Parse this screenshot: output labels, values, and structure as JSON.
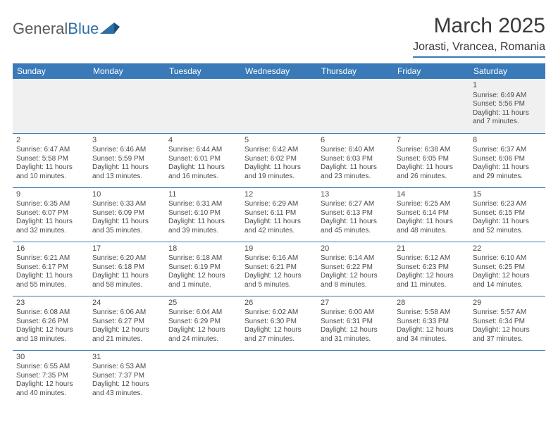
{
  "logo": {
    "part1": "General",
    "part2": "Blue"
  },
  "title": "March 2025",
  "location": "Jorasti, Vrancea, Romania",
  "colors": {
    "header_bg": "#3a7ab8",
    "header_text": "#ffffff",
    "border": "#3a7ab8",
    "text": "#4a4a4a",
    "empty_bg": "#f0f0f0"
  },
  "weekdays": [
    "Sunday",
    "Monday",
    "Tuesday",
    "Wednesday",
    "Thursday",
    "Friday",
    "Saturday"
  ],
  "weeks": [
    [
      {
        "day": "",
        "sunrise": "",
        "sunset": "",
        "daylight": ""
      },
      {
        "day": "",
        "sunrise": "",
        "sunset": "",
        "daylight": ""
      },
      {
        "day": "",
        "sunrise": "",
        "sunset": "",
        "daylight": ""
      },
      {
        "day": "",
        "sunrise": "",
        "sunset": "",
        "daylight": ""
      },
      {
        "day": "",
        "sunrise": "",
        "sunset": "",
        "daylight": ""
      },
      {
        "day": "",
        "sunrise": "",
        "sunset": "",
        "daylight": ""
      },
      {
        "day": "1",
        "sunrise": "Sunrise: 6:49 AM",
        "sunset": "Sunset: 5:56 PM",
        "daylight": "Daylight: 11 hours and 7 minutes."
      }
    ],
    [
      {
        "day": "2",
        "sunrise": "Sunrise: 6:47 AM",
        "sunset": "Sunset: 5:58 PM",
        "daylight": "Daylight: 11 hours and 10 minutes."
      },
      {
        "day": "3",
        "sunrise": "Sunrise: 6:46 AM",
        "sunset": "Sunset: 5:59 PM",
        "daylight": "Daylight: 11 hours and 13 minutes."
      },
      {
        "day": "4",
        "sunrise": "Sunrise: 6:44 AM",
        "sunset": "Sunset: 6:01 PM",
        "daylight": "Daylight: 11 hours and 16 minutes."
      },
      {
        "day": "5",
        "sunrise": "Sunrise: 6:42 AM",
        "sunset": "Sunset: 6:02 PM",
        "daylight": "Daylight: 11 hours and 19 minutes."
      },
      {
        "day": "6",
        "sunrise": "Sunrise: 6:40 AM",
        "sunset": "Sunset: 6:03 PM",
        "daylight": "Daylight: 11 hours and 23 minutes."
      },
      {
        "day": "7",
        "sunrise": "Sunrise: 6:38 AM",
        "sunset": "Sunset: 6:05 PM",
        "daylight": "Daylight: 11 hours and 26 minutes."
      },
      {
        "day": "8",
        "sunrise": "Sunrise: 6:37 AM",
        "sunset": "Sunset: 6:06 PM",
        "daylight": "Daylight: 11 hours and 29 minutes."
      }
    ],
    [
      {
        "day": "9",
        "sunrise": "Sunrise: 6:35 AM",
        "sunset": "Sunset: 6:07 PM",
        "daylight": "Daylight: 11 hours and 32 minutes."
      },
      {
        "day": "10",
        "sunrise": "Sunrise: 6:33 AM",
        "sunset": "Sunset: 6:09 PM",
        "daylight": "Daylight: 11 hours and 35 minutes."
      },
      {
        "day": "11",
        "sunrise": "Sunrise: 6:31 AM",
        "sunset": "Sunset: 6:10 PM",
        "daylight": "Daylight: 11 hours and 39 minutes."
      },
      {
        "day": "12",
        "sunrise": "Sunrise: 6:29 AM",
        "sunset": "Sunset: 6:11 PM",
        "daylight": "Daylight: 11 hours and 42 minutes."
      },
      {
        "day": "13",
        "sunrise": "Sunrise: 6:27 AM",
        "sunset": "Sunset: 6:13 PM",
        "daylight": "Daylight: 11 hours and 45 minutes."
      },
      {
        "day": "14",
        "sunrise": "Sunrise: 6:25 AM",
        "sunset": "Sunset: 6:14 PM",
        "daylight": "Daylight: 11 hours and 48 minutes."
      },
      {
        "day": "15",
        "sunrise": "Sunrise: 6:23 AM",
        "sunset": "Sunset: 6:15 PM",
        "daylight": "Daylight: 11 hours and 52 minutes."
      }
    ],
    [
      {
        "day": "16",
        "sunrise": "Sunrise: 6:21 AM",
        "sunset": "Sunset: 6:17 PM",
        "daylight": "Daylight: 11 hours and 55 minutes."
      },
      {
        "day": "17",
        "sunrise": "Sunrise: 6:20 AM",
        "sunset": "Sunset: 6:18 PM",
        "daylight": "Daylight: 11 hours and 58 minutes."
      },
      {
        "day": "18",
        "sunrise": "Sunrise: 6:18 AM",
        "sunset": "Sunset: 6:19 PM",
        "daylight": "Daylight: 12 hours and 1 minute."
      },
      {
        "day": "19",
        "sunrise": "Sunrise: 6:16 AM",
        "sunset": "Sunset: 6:21 PM",
        "daylight": "Daylight: 12 hours and 5 minutes."
      },
      {
        "day": "20",
        "sunrise": "Sunrise: 6:14 AM",
        "sunset": "Sunset: 6:22 PM",
        "daylight": "Daylight: 12 hours and 8 minutes."
      },
      {
        "day": "21",
        "sunrise": "Sunrise: 6:12 AM",
        "sunset": "Sunset: 6:23 PM",
        "daylight": "Daylight: 12 hours and 11 minutes."
      },
      {
        "day": "22",
        "sunrise": "Sunrise: 6:10 AM",
        "sunset": "Sunset: 6:25 PM",
        "daylight": "Daylight: 12 hours and 14 minutes."
      }
    ],
    [
      {
        "day": "23",
        "sunrise": "Sunrise: 6:08 AM",
        "sunset": "Sunset: 6:26 PM",
        "daylight": "Daylight: 12 hours and 18 minutes."
      },
      {
        "day": "24",
        "sunrise": "Sunrise: 6:06 AM",
        "sunset": "Sunset: 6:27 PM",
        "daylight": "Daylight: 12 hours and 21 minutes."
      },
      {
        "day": "25",
        "sunrise": "Sunrise: 6:04 AM",
        "sunset": "Sunset: 6:29 PM",
        "daylight": "Daylight: 12 hours and 24 minutes."
      },
      {
        "day": "26",
        "sunrise": "Sunrise: 6:02 AM",
        "sunset": "Sunset: 6:30 PM",
        "daylight": "Daylight: 12 hours and 27 minutes."
      },
      {
        "day": "27",
        "sunrise": "Sunrise: 6:00 AM",
        "sunset": "Sunset: 6:31 PM",
        "daylight": "Daylight: 12 hours and 31 minutes."
      },
      {
        "day": "28",
        "sunrise": "Sunrise: 5:58 AM",
        "sunset": "Sunset: 6:33 PM",
        "daylight": "Daylight: 12 hours and 34 minutes."
      },
      {
        "day": "29",
        "sunrise": "Sunrise: 5:57 AM",
        "sunset": "Sunset: 6:34 PM",
        "daylight": "Daylight: 12 hours and 37 minutes."
      }
    ],
    [
      {
        "day": "30",
        "sunrise": "Sunrise: 6:55 AM",
        "sunset": "Sunset: 7:35 PM",
        "daylight": "Daylight: 12 hours and 40 minutes."
      },
      {
        "day": "31",
        "sunrise": "Sunrise: 6:53 AM",
        "sunset": "Sunset: 7:37 PM",
        "daylight": "Daylight: 12 hours and 43 minutes."
      },
      {
        "day": "",
        "sunrise": "",
        "sunset": "",
        "daylight": ""
      },
      {
        "day": "",
        "sunrise": "",
        "sunset": "",
        "daylight": ""
      },
      {
        "day": "",
        "sunrise": "",
        "sunset": "",
        "daylight": ""
      },
      {
        "day": "",
        "sunrise": "",
        "sunset": "",
        "daylight": ""
      },
      {
        "day": "",
        "sunrise": "",
        "sunset": "",
        "daylight": ""
      }
    ]
  ]
}
